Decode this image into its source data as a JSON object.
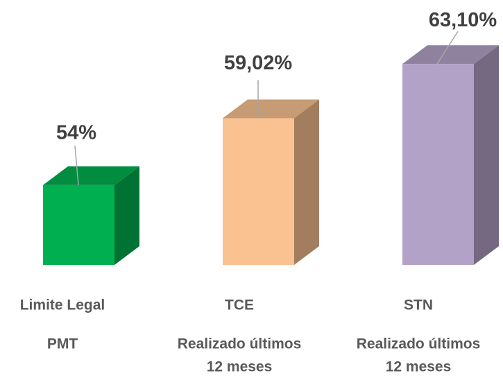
{
  "chart_data": {
    "type": "bar3d",
    "categories": [
      "Limite Legal",
      "TCE",
      "STN"
    ],
    "category_notes": [
      [
        "PMT"
      ],
      [
        "Realizado últimos",
        "12 meses"
      ],
      [
        "Realizado últimos",
        "12 meses"
      ]
    ],
    "values": [
      54,
      59.02,
      63.1
    ],
    "value_labels": [
      "54%",
      "59,02%",
      "63,10%"
    ],
    "colors": [
      "#00b050",
      "#f9c290",
      "#b3a2c7"
    ],
    "ylim": [
      48,
      64
    ]
  }
}
